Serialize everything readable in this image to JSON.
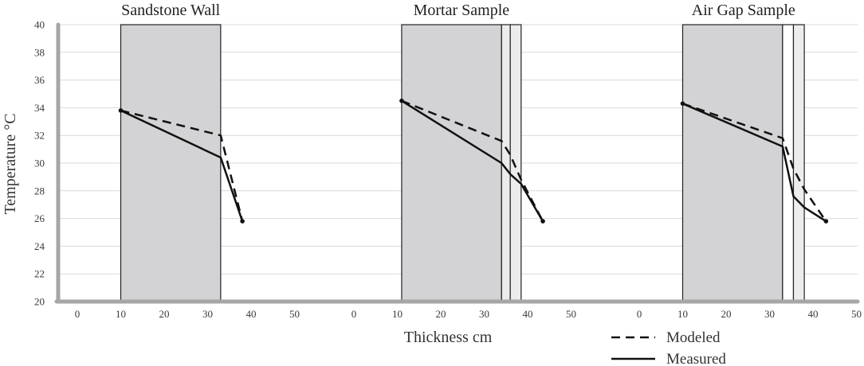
{
  "chart_data": {
    "type": "line",
    "ylabel": "Temperature °C",
    "xlabel": "Thickness cm",
    "ylim": [
      20,
      40
    ],
    "yticks": [
      20,
      22,
      24,
      26,
      28,
      30,
      32,
      34,
      36,
      38,
      40
    ],
    "xlim": [
      -5,
      55
    ],
    "xticks": [
      0,
      10,
      20,
      30,
      40,
      50
    ],
    "grid": "horizontal",
    "legend": {
      "placement": "bottom-right",
      "items": [
        {
          "name": "Modeled",
          "dash": "dashed"
        },
        {
          "name": "Measured",
          "dash": "solid"
        }
      ]
    },
    "colors": {
      "line": "#111111",
      "layer_solid": "#d3d3d5",
      "layer_light": "#ececec",
      "axis": "#a6a6a6",
      "grid": "#d9d9d9"
    },
    "panels": [
      {
        "title": "Sandstone Wall",
        "layers": [
          {
            "from": 10,
            "to": 33,
            "fill": "solid"
          }
        ],
        "series": [
          {
            "name": "Modeled",
            "x": [
              10,
              33,
              38
            ],
            "y": [
              33.8,
              32.0,
              25.8
            ]
          },
          {
            "name": "Measured",
            "x": [
              10,
              33,
              38
            ],
            "y": [
              33.8,
              30.4,
              25.8
            ]
          }
        ]
      },
      {
        "title": "Mortar Sample",
        "layers": [
          {
            "from": 11,
            "to": 34,
            "fill": "solid"
          },
          {
            "from": 34,
            "to": 36,
            "fill": "light"
          },
          {
            "from": 36,
            "to": 38.5,
            "fill": "light"
          }
        ],
        "series": [
          {
            "name": "Modeled",
            "x": [
              11,
              34,
              36,
              38.5,
              43.5
            ],
            "y": [
              34.5,
              31.6,
              30.6,
              28.8,
              25.8
            ]
          },
          {
            "name": "Measured",
            "x": [
              11,
              34,
              36,
              38.5,
              43.5
            ],
            "y": [
              34.5,
              30.0,
              29.2,
              28.5,
              25.8
            ]
          }
        ]
      },
      {
        "title": "Air Gap Sample",
        "layers": [
          {
            "from": 10,
            "to": 33,
            "fill": "solid"
          },
          {
            "from": 33,
            "to": 35.5,
            "fill": "white"
          },
          {
            "from": 35.5,
            "to": 38,
            "fill": "light"
          }
        ],
        "series": [
          {
            "name": "Modeled",
            "x": [
              10,
              33,
              35.5,
              38,
              43
            ],
            "y": [
              34.3,
              31.8,
              29.6,
              28.1,
              25.8
            ]
          },
          {
            "name": "Measured",
            "x": [
              10,
              33,
              35.5,
              38,
              43
            ],
            "y": [
              34.3,
              31.2,
              27.6,
              26.8,
              25.8
            ]
          }
        ]
      }
    ]
  }
}
